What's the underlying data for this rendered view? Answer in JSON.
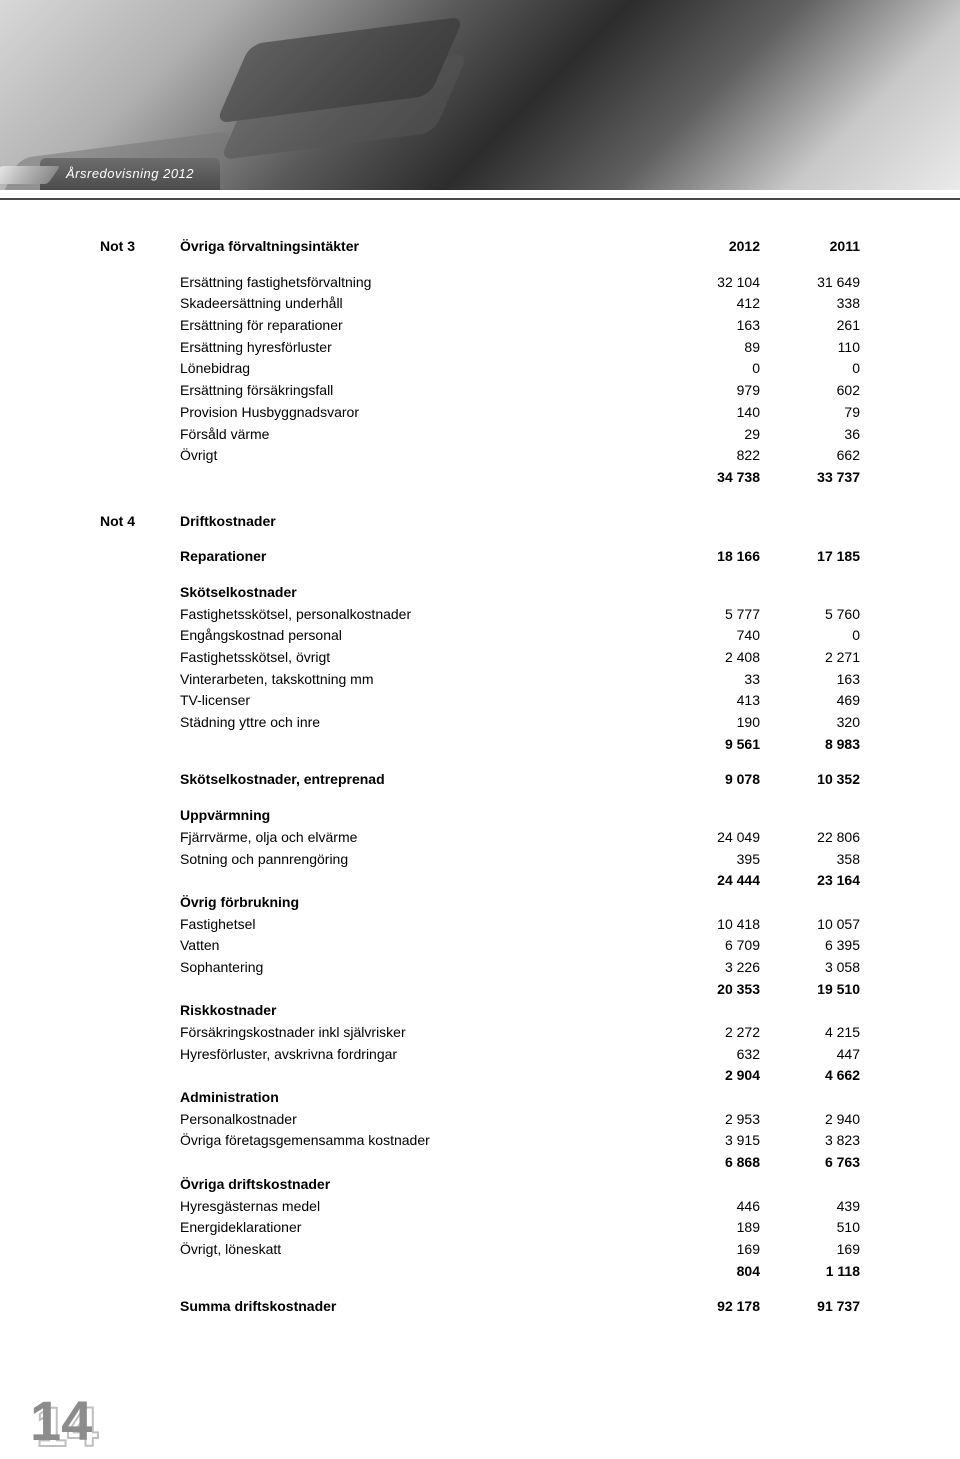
{
  "header": {
    "tab_label": "Årsredovisning 2012"
  },
  "page_number": "14",
  "table": {
    "note3": {
      "note": "Not 3",
      "title": "Övriga förvaltningsintäkter",
      "col1": "2012",
      "col2": "2011",
      "rows": [
        {
          "label": "Ersättning fastighetsförvaltning",
          "v1": "32 104",
          "v2": "31 649"
        },
        {
          "label": "Skadeersättning underhåll",
          "v1": "412",
          "v2": "338"
        },
        {
          "label": "Ersättning för reparationer",
          "v1": "163",
          "v2": "261"
        },
        {
          "label": "Ersättning hyresförluster",
          "v1": "89",
          "v2": "110"
        },
        {
          "label": "Lönebidrag",
          "v1": "0",
          "v2": "0"
        },
        {
          "label": "Ersättning försäkringsfall",
          "v1": "979",
          "v2": "602"
        },
        {
          "label": "Provision Husbyggnadsvaror",
          "v1": "140",
          "v2": "79"
        },
        {
          "label": "Försåld värme",
          "v1": "29",
          "v2": "36"
        },
        {
          "label": "Övrigt",
          "v1": "822",
          "v2": "662"
        }
      ],
      "total": {
        "v1": "34 738",
        "v2": "33 737"
      }
    },
    "note4": {
      "note": "Not 4",
      "title": "Driftkostnader",
      "reparationer": {
        "label": "Reparationer",
        "v1": "18 166",
        "v2": "17 185"
      },
      "skotsel": {
        "heading": "Skötselkostnader",
        "rows": [
          {
            "label": "Fastighetsskötsel, personalkostnader",
            "v1": "5 777",
            "v2": "5 760"
          },
          {
            "label": "Engångskostnad personal",
            "v1": "740",
            "v2": "0"
          },
          {
            "label": "Fastighetsskötsel, övrigt",
            "v1": "2 408",
            "v2": "2 271"
          },
          {
            "label": "Vinterarbeten, takskottning mm",
            "v1": "33",
            "v2": "163"
          },
          {
            "label": "TV-licenser",
            "v1": "413",
            "v2": "469"
          },
          {
            "label": "Städning yttre och inre",
            "v1": "190",
            "v2": "320"
          }
        ],
        "total": {
          "v1": "9 561",
          "v2": "8 983"
        }
      },
      "entreprenad": {
        "label": "Skötselkostnader, entreprenad",
        "v1": "9 078",
        "v2": "10 352"
      },
      "uppvarmning": {
        "heading": "Uppvärmning",
        "rows": [
          {
            "label": "Fjärrvärme, olja och elvärme",
            "v1": "24 049",
            "v2": "22 806"
          },
          {
            "label": "Sotning och pannrengöring",
            "v1": "395",
            "v2": "358"
          }
        ],
        "total": {
          "v1": "24 444",
          "v2": "23 164"
        }
      },
      "ovrig_forbrukning": {
        "heading": "Övrig förbrukning",
        "rows": [
          {
            "label": "Fastighetsel",
            "v1": "10 418",
            "v2": "10 057"
          },
          {
            "label": "Vatten",
            "v1": "6 709",
            "v2": "6 395"
          },
          {
            "label": "Sophantering",
            "v1": "3 226",
            "v2": "3 058"
          }
        ],
        "total": {
          "v1": "20 353",
          "v2": "19 510"
        }
      },
      "riskkostnader": {
        "heading": "Riskkostnader",
        "rows": [
          {
            "label": "Försäkringskostnader inkl självrisker",
            "v1": "2 272",
            "v2": "4 215"
          },
          {
            "label": "Hyresförluster, avskrivna fordringar",
            "v1": "632",
            "v2": "447"
          }
        ],
        "total": {
          "v1": "2 904",
          "v2": "4 662"
        }
      },
      "administration": {
        "heading": "Administration",
        "rows": [
          {
            "label": "Personalkostnader",
            "v1": "2 953",
            "v2": "2 940"
          },
          {
            "label": "Övriga företagsgemensamma kostnader",
            "v1": "3 915",
            "v2": "3 823"
          }
        ],
        "total": {
          "v1": "6 868",
          "v2": "6 763"
        }
      },
      "ovriga_drift": {
        "heading": "Övriga driftskostnader",
        "rows": [
          {
            "label": "Hyresgästernas medel",
            "v1": "446",
            "v2": "439"
          },
          {
            "label": "Energideklarationer",
            "v1": "189",
            "v2": "510"
          },
          {
            "label": "Övrigt, löneskatt",
            "v1": "169",
            "v2": "169"
          }
        ],
        "total": {
          "v1": "804",
          "v2": "1 118"
        }
      },
      "summa": {
        "label": "Summa driftskostnader",
        "v1": "92 178",
        "v2": "91 737"
      }
    }
  }
}
